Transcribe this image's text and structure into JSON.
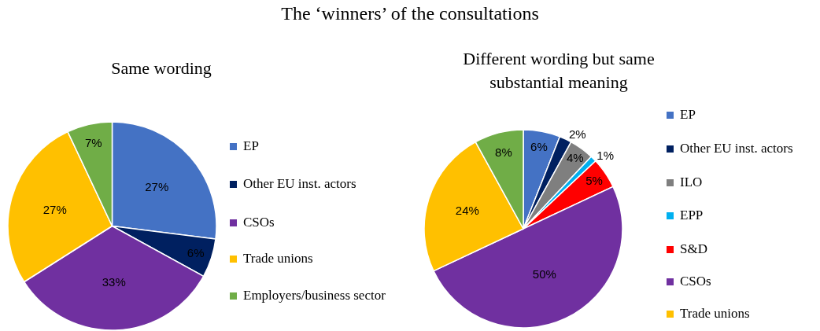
{
  "chart_data": [
    {
      "type": "pie",
      "title": "The ‘winners’ of the consultations",
      "subtitle": "Same wording",
      "legend": "right",
      "categories": [
        "EP",
        "Other EU inst. actors",
        "CSOs",
        "Trade unions",
        "Employers/business sector"
      ],
      "values": [
        27,
        6,
        33,
        27,
        7
      ],
      "value_labels": [
        "27%",
        "6%",
        "33%",
        "27%",
        "7%"
      ],
      "colors": [
        "#4472c4",
        "#002060",
        "#7030a0",
        "#ffc000",
        "#70ad47"
      ]
    },
    {
      "type": "pie",
      "title": "Different wording but same substantial meaning",
      "legend": "right",
      "categories": [
        "EP",
        "Other EU inst. actors",
        "ILO",
        "EPP",
        "S&D",
        "CSOs",
        "Trade unions",
        null
      ],
      "values": [
        6,
        2,
        4,
        1,
        5,
        50,
        24,
        8
      ],
      "value_labels": [
        "6%",
        "2%",
        "4%",
        "1%",
        "5%",
        "50%",
        "24%",
        "8%"
      ],
      "colors": [
        "#4472c4",
        "#002060",
        "#7f7f7f",
        "#00b0f0",
        "#ff0000",
        "#7030a0",
        "#ffc000",
        "#70ad47"
      ]
    }
  ]
}
